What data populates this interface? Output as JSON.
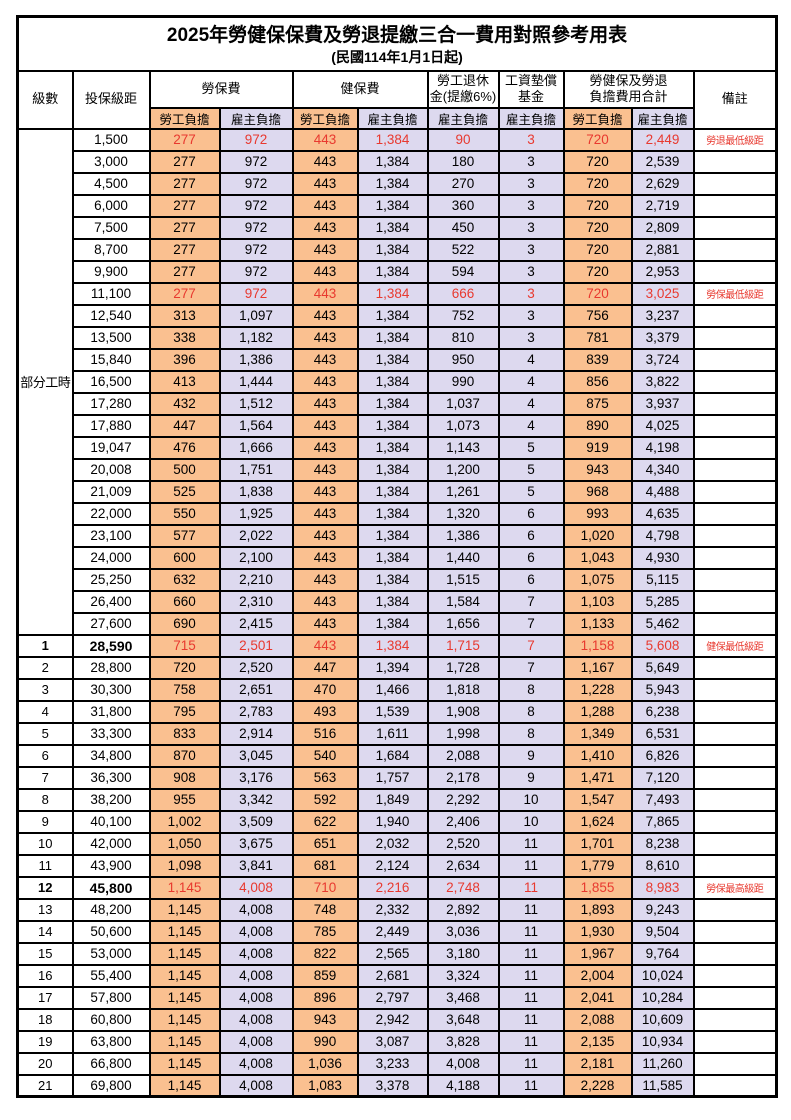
{
  "title": "2025年勞健保保費及勞退提繳三合一費用對照參考用表",
  "subtitle": "(民國114年1月1日起)",
  "colors": {
    "employee_bg": "#FAC090",
    "employer_bg": "#DDD9EF",
    "highlight_red": "#E8392F"
  },
  "header": {
    "level": "級數",
    "bracket": "投保級距",
    "labor_ins": "勞保費",
    "health_ins": "健保費",
    "pension_line1": "勞工退休",
    "pension_line2": "金(提繳6%)",
    "wage_fund_line1": "工資墊償",
    "wage_fund_line2": "基金",
    "total_line1": "勞健保及勞退",
    "total_line2": "負擔費用合計",
    "remark": "備註",
    "employee": "勞工負擔",
    "employer": "雇主負擔"
  },
  "part_time_label": "部分工時",
  "rows": [
    {
      "level": "",
      "bracket": "1,500",
      "values": [
        "277",
        "972",
        "443",
        "1,384",
        "90",
        "3",
        "720",
        "2,449"
      ],
      "remark": "勞退最低級距",
      "highlight": true,
      "bold": false
    },
    {
      "level": "",
      "bracket": "3,000",
      "values": [
        "277",
        "972",
        "443",
        "1,384",
        "180",
        "3",
        "720",
        "2,539"
      ],
      "remark": "",
      "highlight": false,
      "bold": false
    },
    {
      "level": "",
      "bracket": "4,500",
      "values": [
        "277",
        "972",
        "443",
        "1,384",
        "270",
        "3",
        "720",
        "2,629"
      ],
      "remark": "",
      "highlight": false,
      "bold": false
    },
    {
      "level": "",
      "bracket": "6,000",
      "values": [
        "277",
        "972",
        "443",
        "1,384",
        "360",
        "3",
        "720",
        "2,719"
      ],
      "remark": "",
      "highlight": false,
      "bold": false
    },
    {
      "level": "",
      "bracket": "7,500",
      "values": [
        "277",
        "972",
        "443",
        "1,384",
        "450",
        "3",
        "720",
        "2,809"
      ],
      "remark": "",
      "highlight": false,
      "bold": false
    },
    {
      "level": "",
      "bracket": "8,700",
      "values": [
        "277",
        "972",
        "443",
        "1,384",
        "522",
        "3",
        "720",
        "2,881"
      ],
      "remark": "",
      "highlight": false,
      "bold": false
    },
    {
      "level": "",
      "bracket": "9,900",
      "values": [
        "277",
        "972",
        "443",
        "1,384",
        "594",
        "3",
        "720",
        "2,953"
      ],
      "remark": "",
      "highlight": false,
      "bold": false
    },
    {
      "level": "",
      "bracket": "11,100",
      "values": [
        "277",
        "972",
        "443",
        "1,384",
        "666",
        "3",
        "720",
        "3,025"
      ],
      "remark": "勞保最低級距",
      "highlight": true,
      "bold": false
    },
    {
      "level": "",
      "bracket": "12,540",
      "values": [
        "313",
        "1,097",
        "443",
        "1,384",
        "752",
        "3",
        "756",
        "3,237"
      ],
      "remark": "",
      "highlight": false,
      "bold": false
    },
    {
      "level": "",
      "bracket": "13,500",
      "values": [
        "338",
        "1,182",
        "443",
        "1,384",
        "810",
        "3",
        "781",
        "3,379"
      ],
      "remark": "",
      "highlight": false,
      "bold": false
    },
    {
      "level": "",
      "bracket": "15,840",
      "values": [
        "396",
        "1,386",
        "443",
        "1,384",
        "950",
        "4",
        "839",
        "3,724"
      ],
      "remark": "",
      "highlight": false,
      "bold": false
    },
    {
      "level": "",
      "bracket": "16,500",
      "values": [
        "413",
        "1,444",
        "443",
        "1,384",
        "990",
        "4",
        "856",
        "3,822"
      ],
      "remark": "",
      "highlight": false,
      "bold": false
    },
    {
      "level": "",
      "bracket": "17,280",
      "values": [
        "432",
        "1,512",
        "443",
        "1,384",
        "1,037",
        "4",
        "875",
        "3,937"
      ],
      "remark": "",
      "highlight": false,
      "bold": false
    },
    {
      "level": "",
      "bracket": "17,880",
      "values": [
        "447",
        "1,564",
        "443",
        "1,384",
        "1,073",
        "4",
        "890",
        "4,025"
      ],
      "remark": "",
      "highlight": false,
      "bold": false
    },
    {
      "level": "",
      "bracket": "19,047",
      "values": [
        "476",
        "1,666",
        "443",
        "1,384",
        "1,143",
        "5",
        "919",
        "4,198"
      ],
      "remark": "",
      "highlight": false,
      "bold": false
    },
    {
      "level": "",
      "bracket": "20,008",
      "values": [
        "500",
        "1,751",
        "443",
        "1,384",
        "1,200",
        "5",
        "943",
        "4,340"
      ],
      "remark": "",
      "highlight": false,
      "bold": false
    },
    {
      "level": "",
      "bracket": "21,009",
      "values": [
        "525",
        "1,838",
        "443",
        "1,384",
        "1,261",
        "5",
        "968",
        "4,488"
      ],
      "remark": "",
      "highlight": false,
      "bold": false
    },
    {
      "level": "",
      "bracket": "22,000",
      "values": [
        "550",
        "1,925",
        "443",
        "1,384",
        "1,320",
        "6",
        "993",
        "4,635"
      ],
      "remark": "",
      "highlight": false,
      "bold": false
    },
    {
      "level": "",
      "bracket": "23,100",
      "values": [
        "577",
        "2,022",
        "443",
        "1,384",
        "1,386",
        "6",
        "1,020",
        "4,798"
      ],
      "remark": "",
      "highlight": false,
      "bold": false
    },
    {
      "level": "",
      "bracket": "24,000",
      "values": [
        "600",
        "2,100",
        "443",
        "1,384",
        "1,440",
        "6",
        "1,043",
        "4,930"
      ],
      "remark": "",
      "highlight": false,
      "bold": false
    },
    {
      "level": "",
      "bracket": "25,250",
      "values": [
        "632",
        "2,210",
        "443",
        "1,384",
        "1,515",
        "6",
        "1,075",
        "5,115"
      ],
      "remark": "",
      "highlight": false,
      "bold": false
    },
    {
      "level": "",
      "bracket": "26,400",
      "values": [
        "660",
        "2,310",
        "443",
        "1,384",
        "1,584",
        "7",
        "1,103",
        "5,285"
      ],
      "remark": "",
      "highlight": false,
      "bold": false
    },
    {
      "level": "",
      "bracket": "27,600",
      "values": [
        "690",
        "2,415",
        "443",
        "1,384",
        "1,656",
        "7",
        "1,133",
        "5,462"
      ],
      "remark": "",
      "highlight": false,
      "bold": false
    },
    {
      "level": "1",
      "bracket": "28,590",
      "values": [
        "715",
        "2,501",
        "443",
        "1,384",
        "1,715",
        "7",
        "1,158",
        "5,608"
      ],
      "remark": "健保最低級距",
      "highlight": true,
      "bold": true
    },
    {
      "level": "2",
      "bracket": "28,800",
      "values": [
        "720",
        "2,520",
        "447",
        "1,394",
        "1,728",
        "7",
        "1,167",
        "5,649"
      ],
      "remark": "",
      "highlight": false,
      "bold": false
    },
    {
      "level": "3",
      "bracket": "30,300",
      "values": [
        "758",
        "2,651",
        "470",
        "1,466",
        "1,818",
        "8",
        "1,228",
        "5,943"
      ],
      "remark": "",
      "highlight": false,
      "bold": false
    },
    {
      "level": "4",
      "bracket": "31,800",
      "values": [
        "795",
        "2,783",
        "493",
        "1,539",
        "1,908",
        "8",
        "1,288",
        "6,238"
      ],
      "remark": "",
      "highlight": false,
      "bold": false
    },
    {
      "level": "5",
      "bracket": "33,300",
      "values": [
        "833",
        "2,914",
        "516",
        "1,611",
        "1,998",
        "8",
        "1,349",
        "6,531"
      ],
      "remark": "",
      "highlight": false,
      "bold": false
    },
    {
      "level": "6",
      "bracket": "34,800",
      "values": [
        "870",
        "3,045",
        "540",
        "1,684",
        "2,088",
        "9",
        "1,410",
        "6,826"
      ],
      "remark": "",
      "highlight": false,
      "bold": false
    },
    {
      "level": "7",
      "bracket": "36,300",
      "values": [
        "908",
        "3,176",
        "563",
        "1,757",
        "2,178",
        "9",
        "1,471",
        "7,120"
      ],
      "remark": "",
      "highlight": false,
      "bold": false
    },
    {
      "level": "8",
      "bracket": "38,200",
      "values": [
        "955",
        "3,342",
        "592",
        "1,849",
        "2,292",
        "10",
        "1,547",
        "7,493"
      ],
      "remark": "",
      "highlight": false,
      "bold": false
    },
    {
      "level": "9",
      "bracket": "40,100",
      "values": [
        "1,002",
        "3,509",
        "622",
        "1,940",
        "2,406",
        "10",
        "1,624",
        "7,865"
      ],
      "remark": "",
      "highlight": false,
      "bold": false
    },
    {
      "level": "10",
      "bracket": "42,000",
      "values": [
        "1,050",
        "3,675",
        "651",
        "2,032",
        "2,520",
        "11",
        "1,701",
        "8,238"
      ],
      "remark": "",
      "highlight": false,
      "bold": false
    },
    {
      "level": "11",
      "bracket": "43,900",
      "values": [
        "1,098",
        "3,841",
        "681",
        "2,124",
        "2,634",
        "11",
        "1,779",
        "8,610"
      ],
      "remark": "",
      "highlight": false,
      "bold": false
    },
    {
      "level": "12",
      "bracket": "45,800",
      "values": [
        "1,145",
        "4,008",
        "710",
        "2,216",
        "2,748",
        "11",
        "1,855",
        "8,983"
      ],
      "remark": "勞保最高級距",
      "highlight": true,
      "bold": true
    },
    {
      "level": "13",
      "bracket": "48,200",
      "values": [
        "1,145",
        "4,008",
        "748",
        "2,332",
        "2,892",
        "11",
        "1,893",
        "9,243"
      ],
      "remark": "",
      "highlight": false,
      "bold": false
    },
    {
      "level": "14",
      "bracket": "50,600",
      "values": [
        "1,145",
        "4,008",
        "785",
        "2,449",
        "3,036",
        "11",
        "1,930",
        "9,504"
      ],
      "remark": "",
      "highlight": false,
      "bold": false
    },
    {
      "level": "15",
      "bracket": "53,000",
      "values": [
        "1,145",
        "4,008",
        "822",
        "2,565",
        "3,180",
        "11",
        "1,967",
        "9,764"
      ],
      "remark": "",
      "highlight": false,
      "bold": false
    },
    {
      "level": "16",
      "bracket": "55,400",
      "values": [
        "1,145",
        "4,008",
        "859",
        "2,681",
        "3,324",
        "11",
        "2,004",
        "10,024"
      ],
      "remark": "",
      "highlight": false,
      "bold": false
    },
    {
      "level": "17",
      "bracket": "57,800",
      "values": [
        "1,145",
        "4,008",
        "896",
        "2,797",
        "3,468",
        "11",
        "2,041",
        "10,284"
      ],
      "remark": "",
      "highlight": false,
      "bold": false
    },
    {
      "level": "18",
      "bracket": "60,800",
      "values": [
        "1,145",
        "4,008",
        "943",
        "2,942",
        "3,648",
        "11",
        "2,088",
        "10,609"
      ],
      "remark": "",
      "highlight": false,
      "bold": false
    },
    {
      "level": "19",
      "bracket": "63,800",
      "values": [
        "1,145",
        "4,008",
        "990",
        "3,087",
        "3,828",
        "11",
        "2,135",
        "10,934"
      ],
      "remark": "",
      "highlight": false,
      "bold": false
    },
    {
      "level": "20",
      "bracket": "66,800",
      "values": [
        "1,145",
        "4,008",
        "1,036",
        "3,233",
        "4,008",
        "11",
        "2,181",
        "11,260"
      ],
      "remark": "",
      "highlight": false,
      "bold": false
    },
    {
      "level": "21",
      "bracket": "69,800",
      "values": [
        "1,145",
        "4,008",
        "1,083",
        "3,378",
        "4,188",
        "11",
        "2,228",
        "11,585"
      ],
      "remark": "",
      "highlight": false,
      "bold": false
    }
  ],
  "value_column_styles": [
    "orange",
    "lav",
    "orange",
    "lav",
    "lav",
    "lav",
    "orange",
    "lav"
  ]
}
